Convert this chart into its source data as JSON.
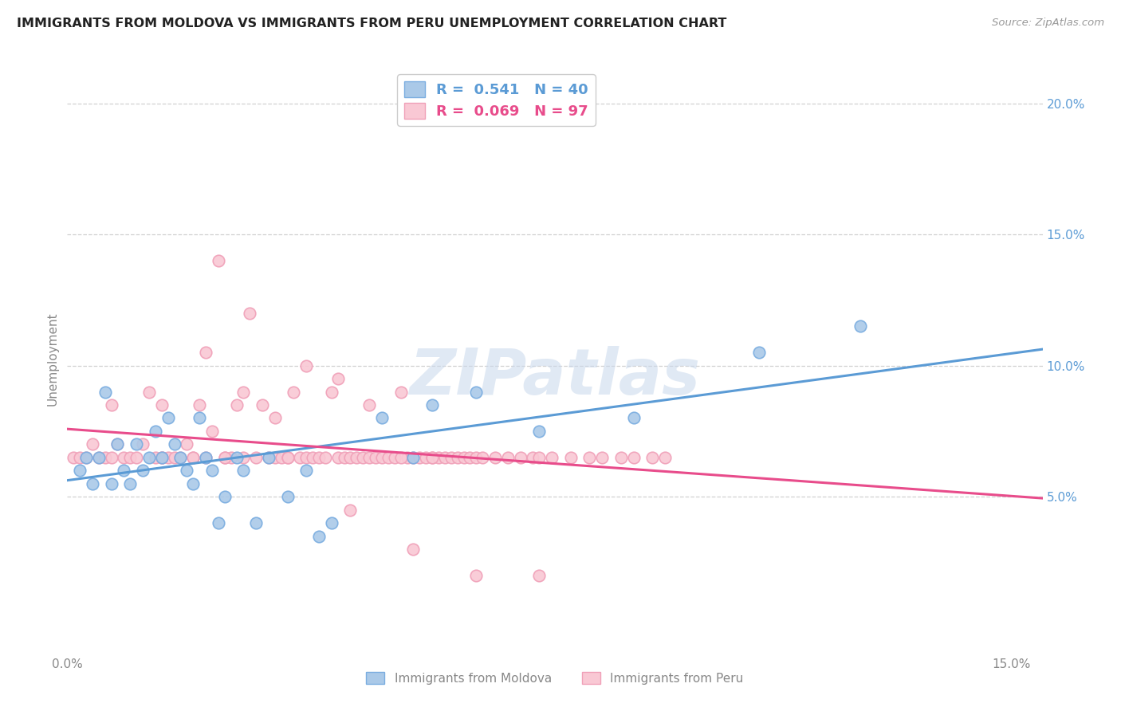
{
  "title": "IMMIGRANTS FROM MOLDOVA VS IMMIGRANTS FROM PERU UNEMPLOYMENT CORRELATION CHART",
  "source": "Source: ZipAtlas.com",
  "ylabel": "Unemployment",
  "watermark": "ZIPatlas",
  "xlim": [
    0.0,
    0.155
  ],
  "ylim": [
    -0.01,
    0.215
  ],
  "xticks": [
    0.0,
    0.05,
    0.1,
    0.15
  ],
  "xticklabels": [
    "0.0%",
    "",
    "",
    "15.0%"
  ],
  "yticks_right": [
    0.05,
    0.1,
    0.15,
    0.2
  ],
  "yticklabels_right": [
    "5.0%",
    "10.0%",
    "15.0%",
    "20.0%"
  ],
  "moldova_color": "#aac9e8",
  "moldova_edge": "#7aade0",
  "peru_color": "#f9c8d4",
  "peru_edge": "#f0a0b8",
  "legend_label_moldova": "R =  0.541   N = 40",
  "legend_label_peru": "R =  0.069   N = 97",
  "trendline_moldova_color": "#5b9bd5",
  "trendline_peru_color": "#e84c8b",
  "axis_label_color": "#5b9bd5",
  "background_color": "#ffffff",
  "grid_color": "#d0d0d0",
  "title_color": "#222222",
  "source_color": "#999999",
  "legend_text_color_moldova": "#5b9bd5",
  "legend_text_color_peru": "#e84c8b",
  "moldova_x": [
    0.002,
    0.003,
    0.004,
    0.005,
    0.006,
    0.007,
    0.008,
    0.009,
    0.01,
    0.011,
    0.012,
    0.013,
    0.014,
    0.015,
    0.016,
    0.017,
    0.018,
    0.019,
    0.02,
    0.021,
    0.022,
    0.023,
    0.024,
    0.025,
    0.027,
    0.028,
    0.03,
    0.032,
    0.035,
    0.038,
    0.04,
    0.042,
    0.05,
    0.055,
    0.058,
    0.065,
    0.075,
    0.09,
    0.11,
    0.126
  ],
  "moldova_y": [
    0.06,
    0.065,
    0.055,
    0.065,
    0.09,
    0.055,
    0.07,
    0.06,
    0.055,
    0.07,
    0.06,
    0.065,
    0.075,
    0.065,
    0.08,
    0.07,
    0.065,
    0.06,
    0.055,
    0.08,
    0.065,
    0.06,
    0.04,
    0.05,
    0.065,
    0.06,
    0.04,
    0.065,
    0.05,
    0.06,
    0.035,
    0.04,
    0.08,
    0.065,
    0.085,
    0.09,
    0.075,
    0.08,
    0.105,
    0.115
  ],
  "peru_x": [
    0.001,
    0.002,
    0.003,
    0.004,
    0.005,
    0.006,
    0.007,
    0.007,
    0.008,
    0.009,
    0.01,
    0.011,
    0.012,
    0.013,
    0.014,
    0.015,
    0.015,
    0.016,
    0.017,
    0.018,
    0.019,
    0.02,
    0.02,
    0.021,
    0.022,
    0.023,
    0.024,
    0.025,
    0.026,
    0.027,
    0.028,
    0.029,
    0.03,
    0.031,
    0.032,
    0.033,
    0.034,
    0.035,
    0.036,
    0.037,
    0.038,
    0.039,
    0.04,
    0.041,
    0.042,
    0.043,
    0.044,
    0.045,
    0.046,
    0.047,
    0.048,
    0.049,
    0.05,
    0.051,
    0.052,
    0.053,
    0.054,
    0.055,
    0.056,
    0.057,
    0.058,
    0.059,
    0.06,
    0.061,
    0.062,
    0.063,
    0.064,
    0.065,
    0.066,
    0.068,
    0.07,
    0.072,
    0.074,
    0.075,
    0.077,
    0.08,
    0.083,
    0.085,
    0.088,
    0.09,
    0.093,
    0.095,
    0.022,
    0.028,
    0.033,
    0.038,
    0.043,
    0.048,
    0.053,
    0.058,
    0.015,
    0.025,
    0.035,
    0.045,
    0.055,
    0.065,
    0.075
  ],
  "peru_y": [
    0.065,
    0.065,
    0.065,
    0.07,
    0.065,
    0.065,
    0.065,
    0.085,
    0.07,
    0.065,
    0.065,
    0.065,
    0.07,
    0.09,
    0.065,
    0.065,
    0.085,
    0.065,
    0.065,
    0.065,
    0.07,
    0.065,
    0.065,
    0.085,
    0.065,
    0.075,
    0.14,
    0.065,
    0.065,
    0.085,
    0.065,
    0.12,
    0.065,
    0.085,
    0.065,
    0.065,
    0.065,
    0.065,
    0.09,
    0.065,
    0.065,
    0.065,
    0.065,
    0.065,
    0.09,
    0.065,
    0.065,
    0.065,
    0.065,
    0.065,
    0.065,
    0.065,
    0.065,
    0.065,
    0.065,
    0.09,
    0.065,
    0.065,
    0.065,
    0.065,
    0.065,
    0.065,
    0.065,
    0.065,
    0.065,
    0.065,
    0.065,
    0.065,
    0.065,
    0.065,
    0.065,
    0.065,
    0.065,
    0.065,
    0.065,
    0.065,
    0.065,
    0.065,
    0.065,
    0.065,
    0.065,
    0.065,
    0.105,
    0.09,
    0.08,
    0.1,
    0.095,
    0.085,
    0.065,
    0.065,
    0.065,
    0.065,
    0.065,
    0.045,
    0.03,
    0.02,
    0.02
  ]
}
